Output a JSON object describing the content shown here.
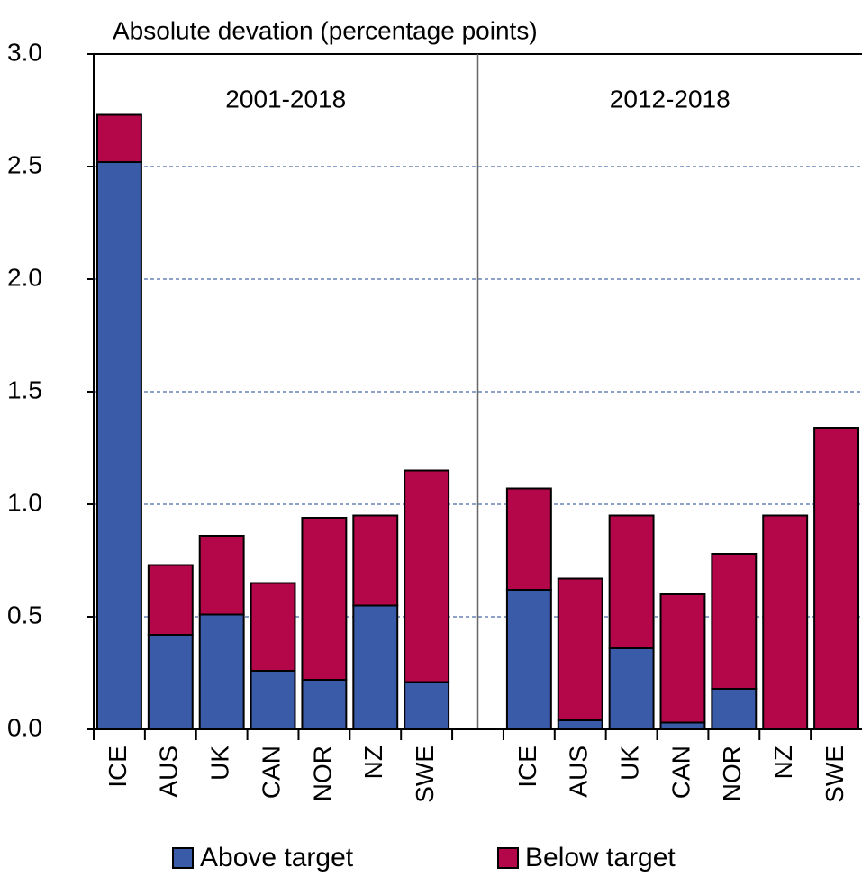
{
  "chart_data": {
    "type": "stacked-bar",
    "title": "Absolute devation (percentage points)",
    "annotations": [
      "2001-2018",
      "2012-2018"
    ],
    "categories": [
      "ICE",
      "AUS",
      "UK",
      "CAN",
      "NOR",
      "NZ",
      "SWE",
      null,
      "ICE",
      "AUS",
      "UK",
      "CAN",
      "NOR",
      "NZ",
      "SWE"
    ],
    "series": [
      {
        "name": "Above target",
        "color": "#3a5ba8",
        "values": [
          2.52,
          0.42,
          0.51,
          0.26,
          0.22,
          0.55,
          0.21,
          null,
          0.62,
          0.04,
          0.36,
          0.03,
          0.18,
          0,
          0
        ]
      },
      {
        "name": "Below target",
        "color": "#b4074a",
        "values": [
          0.21,
          0.31,
          0.35,
          0.39,
          0.72,
          0.4,
          0.94,
          null,
          0.45,
          0.63,
          0.59,
          0.57,
          0.6,
          0.95,
          1.34
        ]
      }
    ],
    "ylim": [
      0,
      3
    ],
    "yticks": [
      {
        "value": 0,
        "label": "0.0"
      },
      0.5,
      {
        "value": 1,
        "label": "1.0"
      },
      1.5,
      {
        "value": 2,
        "label": "2.0"
      },
      2.5,
      {
        "value": 3,
        "label": "3.0"
      }
    ],
    "grid": true,
    "legend": "bottom"
  }
}
